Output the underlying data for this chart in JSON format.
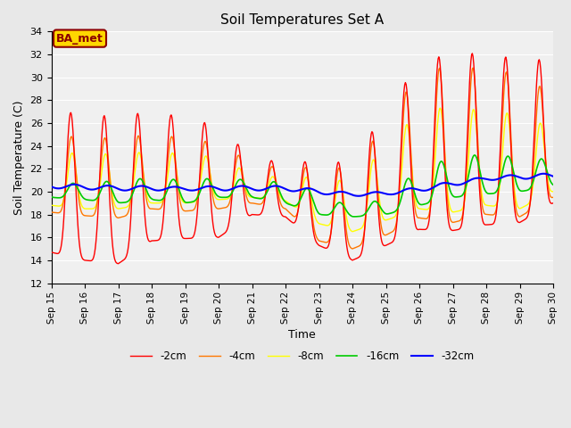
{
  "title": "Soil Temperatures Set A",
  "xlabel": "Time",
  "ylabel": "Soil Temperature (C)",
  "ylim": [
    12,
    34
  ],
  "annotation_text": "BA_met",
  "annotation_color": "#8B0000",
  "annotation_bg": "#FFD700",
  "line_colors": {
    "-2cm": "#FF0000",
    "-4cm": "#FF7700",
    "-8cm": "#FFFF00",
    "-16cm": "#00CC00",
    "-32cm": "#0000FF"
  },
  "bg_color": "#E8E8E8",
  "plot_bg_color": "#F0F0F0",
  "grid_color": "#FFFFFF",
  "xtick_labels": [
    "Sep 15",
    "Sep 16",
    "Sep 17",
    "Sep 18",
    "Sep 19",
    "Sep 20",
    "Sep 21",
    "Sep 22",
    "Sep 23",
    "Sep 24",
    "Sep 25",
    "Sep 26",
    "Sep 27",
    "Sep 28",
    "Sep 29",
    "Sep 30"
  ],
  "ytick_values": [
    12,
    14,
    16,
    18,
    20,
    22,
    24,
    26,
    28,
    30,
    32,
    34
  ]
}
